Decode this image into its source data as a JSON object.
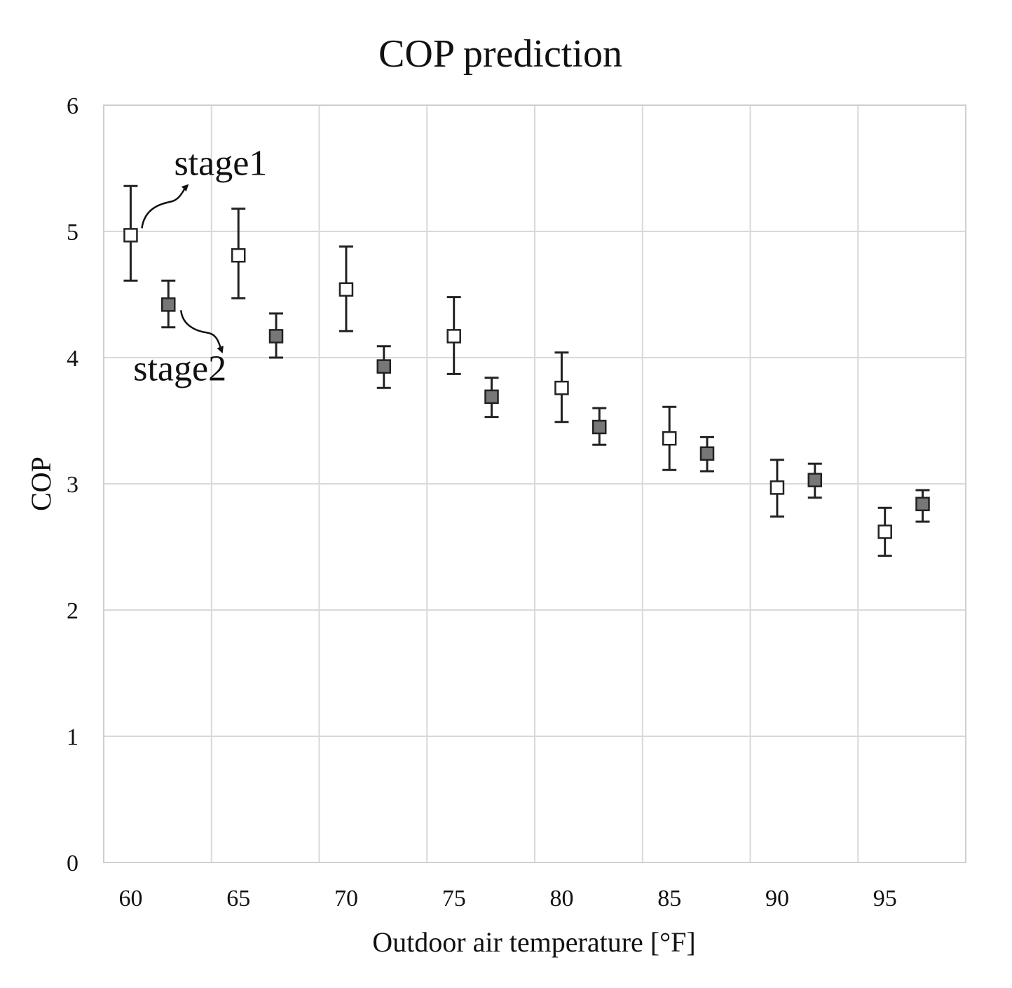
{
  "chart_data": {
    "type": "scatter",
    "title": "COP prediction",
    "xlabel": "Outdoor air temperature [°F]",
    "ylabel": "COP",
    "categories": [
      "60",
      "65",
      "70",
      "75",
      "80",
      "85",
      "90",
      "95"
    ],
    "ylim": [
      0,
      6
    ],
    "yticks": [
      "0",
      "1",
      "2",
      "3",
      "4",
      "5",
      "6"
    ],
    "grid": true,
    "series": [
      {
        "name": "stage1",
        "marker": "open-square",
        "color": "#ffffff",
        "values": [
          4.97,
          4.81,
          4.54,
          4.17,
          3.76,
          3.36,
          2.97,
          2.62
        ],
        "err_low": [
          4.61,
          4.47,
          4.21,
          3.87,
          3.49,
          3.11,
          2.74,
          2.43
        ],
        "err_high": [
          5.36,
          5.18,
          4.88,
          4.48,
          4.04,
          3.61,
          3.19,
          2.81
        ]
      },
      {
        "name": "stage2",
        "marker": "filled-square",
        "color": "#777777",
        "values": [
          4.42,
          4.17,
          3.93,
          3.69,
          3.45,
          3.24,
          3.03,
          2.84
        ],
        "err_low": [
          4.24,
          4.0,
          3.76,
          3.53,
          3.31,
          3.1,
          2.89,
          2.7
        ],
        "err_high": [
          4.61,
          4.35,
          4.09,
          3.84,
          3.6,
          3.37,
          3.16,
          2.95
        ]
      }
    ],
    "annotations": [
      {
        "text": "stage1",
        "series": 0,
        "point": 0
      },
      {
        "text": "stage2",
        "series": 1,
        "point": 0
      }
    ]
  }
}
